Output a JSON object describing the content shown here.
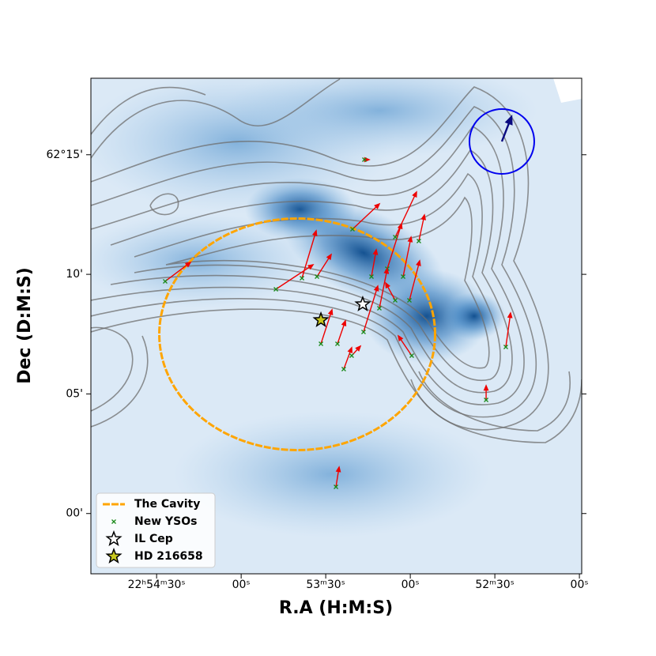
{
  "chart_data": {
    "type": "scatter",
    "x_label": "R.A (H:M:S)",
    "y_label": "Dec (D:M:S)",
    "xlim": [
      22.91481,
      22.86644
    ],
    "ylim": [
      61.958,
      62.3033
    ],
    "xticks": [
      {
        "value": 22.908333,
        "label": "22ʰ54ᵐ30ˢ"
      },
      {
        "value": 22.9,
        "label": "00ˢ"
      },
      {
        "value": 22.891667,
        "label": "53ᵐ30ˢ"
      },
      {
        "value": 22.883333,
        "label": "00ˢ"
      },
      {
        "value": 22.875,
        "label": "52ᵐ30ˢ"
      },
      {
        "value": 22.866667,
        "label": "00ˢ"
      }
    ],
    "yticks": [
      {
        "value": 62.25,
        "label": "62°15'"
      },
      {
        "value": 62.166667,
        "label": "10'"
      },
      {
        "value": 62.083333,
        "label": "05'"
      },
      {
        "value": 62.0,
        "label": "00'"
      }
    ],
    "legend": "lower left",
    "series": [
      {
        "name": "The Cavity",
        "type": "ellipse",
        "color": "#ffa500",
        "center_x": 22.89448,
        "center_y": 62.12487,
        "radius_x": 0.01359,
        "radius_y": 0.08068
      },
      {
        "name": "New YSOs",
        "type": "vectors",
        "color": "#1a8a1a",
        "arrow_color": "#ee0000",
        "x": [
          22.90749,
          22.89658,
          22.89401,
          22.89253,
          22.89214,
          22.89051,
          22.88989,
          22.89066,
          22.88786,
          22.88903,
          22.88794,
          22.88716,
          22.8856,
          22.88482,
          22.88404,
          22.88342,
          22.88249,
          22.88319,
          22.87392,
          22.87586,
          22.88911,
          22.88638,
          22.88482
        ],
        "y": [
          62.16177,
          62.15626,
          62.16397,
          62.16507,
          62.11826,
          62.11826,
          62.10064,
          62.01859,
          62.24658,
          62.19812,
          62.12653,
          62.16507,
          62.17058,
          62.19261,
          62.16507,
          62.14855,
          62.18986,
          62.11,
          62.11606,
          62.07917,
          62.11,
          62.14305,
          62.14855
        ],
        "tip_x": [
          22.905,
          22.89292,
          22.89261,
          22.89113,
          22.89105,
          22.88973,
          22.88911,
          22.89035,
          22.88739,
          22.88638,
          22.88654,
          22.88669,
          22.8842,
          22.88272,
          22.88326,
          22.88241,
          22.88194,
          22.88451,
          22.87345,
          22.87586,
          22.88825,
          22.8856,
          22.88576
        ],
        "tip_y": [
          62.17499,
          62.17333,
          62.19701,
          62.18049,
          62.14194,
          62.13424,
          62.11551,
          62.03236,
          62.24658,
          62.21574,
          62.15847,
          62.1838,
          62.20188,
          62.224,
          62.19261,
          62.17609,
          62.20803,
          62.12377,
          62.13974,
          62.08908,
          62.11661,
          62.17058,
          62.16067
        ]
      },
      {
        "name": "IL Cep",
        "type": "star",
        "color": "#ffffff",
        "x": [
          22.88802
        ],
        "y": [
          62.1458
        ]
      },
      {
        "name": "HD 216658",
        "type": "star",
        "color": "#c8c81e",
        "x": [
          22.89214
        ],
        "y": [
          62.13479
        ]
      }
    ],
    "reference_vector": {
      "color": "#0000ee",
      "arrow_color": "#0a0a80",
      "center_x": 22.87431,
      "center_y": 62.25924,
      "radius": 0.02258,
      "tip_x": 22.87337,
      "tip_y": 62.27632
    }
  }
}
